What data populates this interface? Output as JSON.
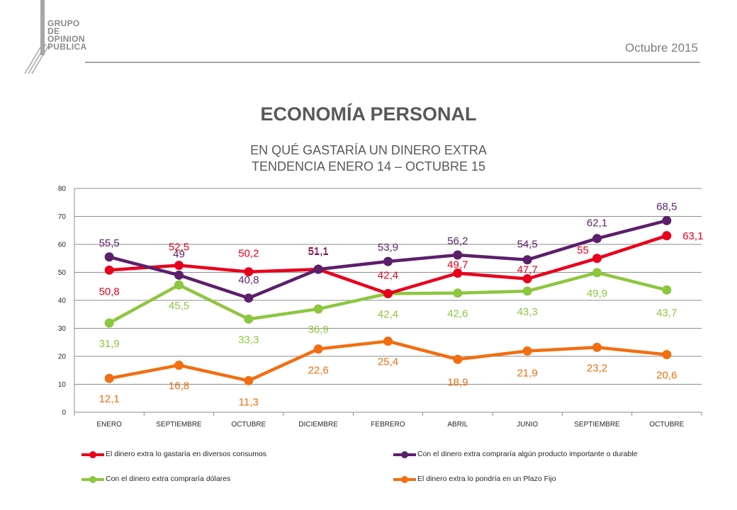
{
  "header": {
    "logo_lines": [
      "GRUPO",
      "DE",
      "OPINION",
      "PUBLICA"
    ],
    "date": "Octubre 2015"
  },
  "chart_data": {
    "type": "line",
    "title": "ECONOMÍA PERSONAL",
    "subtitle_lines": [
      "EN QUÉ GASTARÍA UN DINERO EXTRA",
      "TENDENCIA ENERO 14 – OCTUBRE  15"
    ],
    "categories": [
      "ENERO",
      "SEPTIEMBRE",
      "OCTUBRE",
      "DICIEMBRE",
      "FEBRERO",
      "ABRIL",
      "JUNIO",
      "SEPTIEMBRE",
      "OCTUBRE"
    ],
    "ylim": [
      0,
      80
    ],
    "yticks": [
      0,
      10,
      20,
      30,
      40,
      50,
      60,
      70,
      80
    ],
    "grid": true,
    "legend_position": "bottom",
    "series": [
      {
        "name": "El dinero extra lo gastaría en diversos consumos",
        "color": "#e8001c",
        "values": [
          50.8,
          52.5,
          50.2,
          51.1,
          42.4,
          49.7,
          47.7,
          55,
          63.1
        ],
        "labels": [
          "50,8",
          "52,5",
          "50,2",
          "51,1",
          "42,4",
          "49,7",
          "47,7",
          "55",
          "63,1"
        ]
      },
      {
        "name": "Con el dinero extra compraría algún producto importante o durable",
        "color": "#5c1f6b",
        "values": [
          55.5,
          49,
          40.8,
          51.1,
          53.9,
          56.2,
          54.5,
          62.1,
          68.5
        ],
        "labels": [
          "55,5",
          "49",
          "40,8",
          "51,1",
          "53,9",
          "56,2",
          "54,5",
          "62,1",
          "68,5"
        ]
      },
      {
        "name": "Con el dinero extra compraría dólares",
        "color": "#8dc63f",
        "values": [
          31.9,
          45.5,
          33.3,
          36.9,
          42.4,
          42.6,
          43.3,
          49.9,
          43.7
        ],
        "labels": [
          "31,9",
          "45,5",
          "33,3",
          "36,9",
          "42,4",
          "42,6",
          "43,3",
          "49,9",
          "43,7"
        ]
      },
      {
        "name": "El dinero extra lo pondría en un Plazo Fijo",
        "color": "#f26e10",
        "values": [
          12.1,
          16.8,
          11.3,
          22.6,
          25.4,
          18.9,
          21.9,
          23.2,
          20.6
        ],
        "labels": [
          "12,1",
          "16,8",
          "11,3",
          "22,6",
          "25,4",
          "18,9",
          "21,9",
          "23,2",
          "20,6"
        ]
      }
    ]
  }
}
